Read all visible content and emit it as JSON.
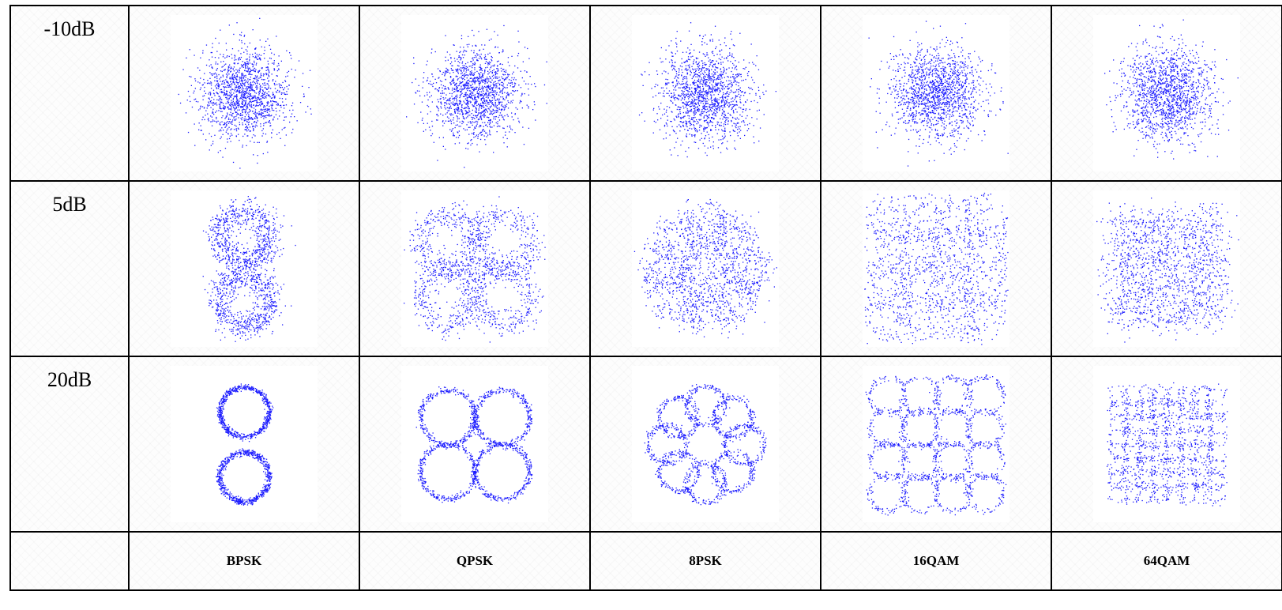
{
  "rows": [
    {
      "snr": "-10dB",
      "noise": 0.55
    },
    {
      "snr": "5dB",
      "noise": 0.11
    },
    {
      "snr": "20dB",
      "noise": 0.025
    }
  ],
  "columns": [
    {
      "modulation": "BPSK",
      "points": [
        [
          0,
          0.5
        ],
        [
          0,
          -0.5
        ]
      ],
      "ring": 0.38
    },
    {
      "modulation": "QPSK",
      "points": [
        [
          0.42,
          0.42
        ],
        [
          -0.42,
          0.42
        ],
        [
          -0.42,
          -0.42
        ],
        [
          0.42,
          -0.42
        ]
      ],
      "ring": 0.42
    },
    {
      "modulation": "8PSK",
      "points": [
        [
          0.6,
          0
        ],
        [
          0.42,
          0.42
        ],
        [
          0,
          0.6
        ],
        [
          -0.42,
          0.42
        ],
        [
          -0.6,
          0
        ],
        [
          -0.42,
          -0.42
        ],
        [
          0,
          -0.6
        ],
        [
          0.42,
          -0.42
        ]
      ],
      "ring": 0.3
    },
    {
      "modulation": "16QAM",
      "grid": 4,
      "ring": 0.28
    },
    {
      "modulation": "64QAM",
      "grid": 8,
      "ring": 0.14
    }
  ],
  "point_color": "#1a1aff"
}
